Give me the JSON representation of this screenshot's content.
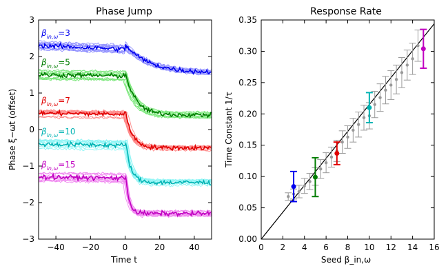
{
  "chart_data": [
    {
      "type": "line",
      "title": "Phase Jump",
      "xlabel": "Time t",
      "ylabel": "Phase ξ−ωt (offset)",
      "xlim": [
        -50,
        50
      ],
      "ylim": [
        -3,
        3
      ],
      "xticks": [
        -40,
        -20,
        0,
        20,
        40
      ],
      "yticks": [
        -3,
        -2,
        -1,
        0,
        1,
        2,
        3
      ],
      "grid": false,
      "jump_time": 0,
      "series": [
        {
          "name": "β_in,ω=3",
          "label_base": "β",
          "label_sub": "in,ω",
          "label_val": "=3",
          "color": "#0000ee",
          "light_color": "#8f8fff",
          "before": 2.3,
          "after": 1.55
        },
        {
          "name": "β_in,ω=5",
          "label_base": "β",
          "label_sub": "in,ω",
          "label_val": "=5",
          "color": "#007d00",
          "light_color": "#7ee87e",
          "before": 1.5,
          "after": 0.4
        },
        {
          "name": "β_in,ω=7",
          "label_base": "β",
          "label_sub": "in,ω",
          "label_val": "=7",
          "color": "#e00000",
          "light_color": "#ff8a8a",
          "before": 0.45,
          "after": -0.5
        },
        {
          "name": "β_in,ω=10",
          "label_base": "β",
          "label_sub": "in,ω",
          "label_val": "=10",
          "color": "#00b3b3",
          "light_color": "#8ff5f5",
          "before": -0.4,
          "after": -1.45
        },
        {
          "name": "β_in,ω=15",
          "label_base": "β",
          "label_sub": "in,ω",
          "label_val": "=15",
          "color": "#c000c0",
          "light_color": "#f08af0",
          "before": -1.3,
          "after": -2.3
        }
      ]
    },
    {
      "type": "scatter",
      "title": "Response Rate",
      "xlabel": "Seed β_in,ω",
      "ylabel": "Time Constant 1/τ",
      "xlim": [
        0,
        16
      ],
      "ylim": [
        0,
        0.35
      ],
      "xticks": [
        0,
        2,
        4,
        6,
        8,
        10,
        12,
        14,
        16
      ],
      "yticks": [
        0.0,
        0.05,
        0.1,
        0.15,
        0.2,
        0.25,
        0.3,
        0.35
      ],
      "grid": false,
      "fit_line": {
        "slope": 0.0215,
        "intercept": 0.0,
        "color": "#000000"
      },
      "gray_points": {
        "color": "#999999",
        "x": [
          2.5,
          3.0,
          3.5,
          4.0,
          4.5,
          5.0,
          5.5,
          6.0,
          6.5,
          7.0,
          7.5,
          8.0,
          8.5,
          9.0,
          9.5,
          10.0,
          10.5,
          11.0,
          11.5,
          12.0,
          12.5,
          13.0,
          13.5,
          14.0,
          14.5
        ],
        "y": [
          0.068,
          0.072,
          0.076,
          0.085,
          0.092,
          0.1,
          0.112,
          0.122,
          0.131,
          0.141,
          0.155,
          0.163,
          0.174,
          0.183,
          0.194,
          0.197,
          0.215,
          0.226,
          0.238,
          0.246,
          0.255,
          0.266,
          0.278,
          0.288,
          0.309
        ],
        "err": [
          0.006,
          0.008,
          0.01,
          0.012,
          0.013,
          0.014,
          0.015,
          0.016,
          0.016,
          0.017,
          0.018,
          0.018,
          0.019,
          0.02,
          0.02,
          0.021,
          0.021,
          0.022,
          0.022,
          0.023,
          0.023,
          0.024,
          0.024,
          0.025,
          0.025
        ]
      },
      "highlight_points": [
        {
          "x": 3,
          "y": 0.084,
          "err": 0.024,
          "color": "#0000ee"
        },
        {
          "x": 5,
          "y": 0.099,
          "err": 0.031,
          "color": "#007d00"
        },
        {
          "x": 7,
          "y": 0.137,
          "err": 0.018,
          "color": "#e00000"
        },
        {
          "x": 10,
          "y": 0.21,
          "err": 0.024,
          "color": "#00b3b3"
        },
        {
          "x": 15,
          "y": 0.304,
          "err": 0.031,
          "color": "#c000c0"
        }
      ]
    }
  ]
}
